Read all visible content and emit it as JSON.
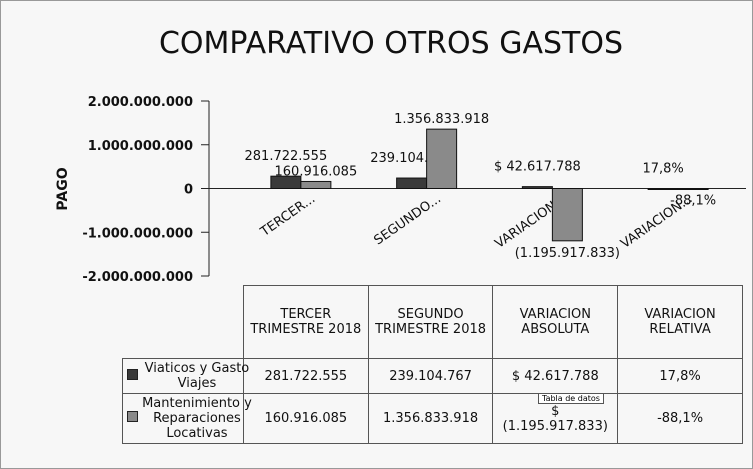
{
  "chart_data": {
    "type": "bar",
    "title": "COMPARATIVO OTROS GASTOS",
    "y_label": "PAGO",
    "categories": [
      "TERCER TRIMESTRE 2018",
      "SEGUNDO TRIMESTRE 2018",
      "VARIACION ABSOLUTA",
      "VARIACION RELATIVA"
    ],
    "axis_labels": [
      "TERCER...",
      "SEGUNDO...",
      "VARIACION...",
      "VARIACION..."
    ],
    "series": [
      {
        "name": "Viaticos y Gasto Viajes",
        "color": "#3a3a3a",
        "values": [
          281722555,
          239104767,
          42617788,
          17.8
        ],
        "value_labels": [
          "281.722.555",
          "239.104.767",
          "$ 42.617.788",
          "17,8%"
        ],
        "table_labels": [
          "281.722.555",
          "239.104.767",
          "$ 42.617.788",
          "17,8%"
        ]
      },
      {
        "name": "Mantenimiento y Reparaciones Locativas",
        "color": "#8a8a8a",
        "values": [
          160916085,
          1356833918,
          -1195917833,
          -88.1
        ],
        "value_labels": [
          "160.916.085",
          "1.356.833.918",
          "(1.195.917.833)",
          "-88,1%"
        ],
        "table_labels": [
          "160.916.085",
          "1.356.833.918",
          "$ (1.195.917.833)",
          "-88,1%"
        ]
      }
    ],
    "ylim": [
      -2000000000,
      2000000000
    ],
    "yticks": [
      {
        "value": 2000000000,
        "label": "2.000.000.000"
      },
      {
        "value": 1000000000,
        "label": "1.000.000.000"
      },
      0,
      {
        "value": -1000000000,
        "label": "-1.000.000.000"
      },
      {
        "value": -2000000000,
        "label": "-2.000.000.000"
      }
    ],
    "tooltip": "Tabla de datos"
  }
}
